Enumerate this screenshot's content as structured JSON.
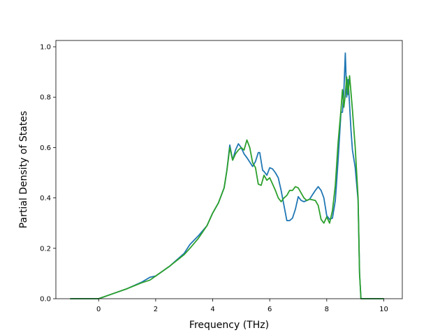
{
  "chart_data": {
    "type": "line",
    "title": "",
    "xlabel": "Frequency (THz)",
    "ylabel": "Partial Density of States",
    "xlim": [
      -1.5,
      10.65
    ],
    "ylim": [
      0.0,
      1.025
    ],
    "xticks": [
      0,
      2,
      4,
      6,
      8,
      10
    ],
    "xtick_labels": [
      "0",
      "2",
      "4",
      "6",
      "8",
      "10"
    ],
    "yticks": [
      0.0,
      0.2,
      0.4,
      0.6,
      0.8,
      1.0
    ],
    "ytick_labels": [
      "0.0",
      "0.2",
      "0.4",
      "0.6",
      "0.8",
      "1.0"
    ],
    "grid": false,
    "legend": "none",
    "series": [
      {
        "color": "#1f77b4",
        "x": [
          -1.0,
          0.0,
          0.5,
          1.0,
          1.5,
          1.8,
          2.0,
          2.5,
          3.0,
          3.2,
          3.5,
          3.8,
          4.0,
          4.2,
          4.4,
          4.5,
          4.6,
          4.7,
          4.8,
          4.9,
          5.0,
          5.1,
          5.2,
          5.4,
          5.5,
          5.6,
          5.65,
          5.75,
          5.8,
          5.9,
          6.0,
          6.1,
          6.2,
          6.3,
          6.4,
          6.5,
          6.6,
          6.7,
          6.8,
          6.9,
          7.0,
          7.1,
          7.2,
          7.4,
          7.6,
          7.7,
          7.8,
          7.9,
          8.0,
          8.1,
          8.2,
          8.3,
          8.4,
          8.5,
          8.55,
          8.6,
          8.65,
          8.7,
          8.75,
          8.8,
          8.85,
          8.9,
          9.0,
          9.1,
          9.15,
          9.2,
          9.3,
          10.0
        ],
        "y": [
          0.0,
          0.0,
          0.02,
          0.04,
          0.065,
          0.085,
          0.09,
          0.13,
          0.18,
          0.215,
          0.25,
          0.29,
          0.34,
          0.38,
          0.44,
          0.51,
          0.61,
          0.55,
          0.59,
          0.615,
          0.6,
          0.575,
          0.56,
          0.525,
          0.545,
          0.58,
          0.58,
          0.51,
          0.505,
          0.49,
          0.52,
          0.515,
          0.5,
          0.48,
          0.43,
          0.37,
          0.31,
          0.31,
          0.32,
          0.355,
          0.405,
          0.39,
          0.385,
          0.395,
          0.43,
          0.445,
          0.43,
          0.4,
          0.33,
          0.315,
          0.32,
          0.39,
          0.55,
          0.74,
          0.74,
          0.82,
          0.975,
          0.8,
          0.87,
          0.77,
          0.67,
          0.59,
          0.52,
          0.39,
          0.1,
          0.0,
          0.0,
          0.0
        ]
      },
      {
        "color": "#2ca02c",
        "x": [
          -1.0,
          0.0,
          0.5,
          1.0,
          1.5,
          1.8,
          2.0,
          2.5,
          3.0,
          3.2,
          3.5,
          3.8,
          4.0,
          4.2,
          4.4,
          4.5,
          4.6,
          4.7,
          4.8,
          4.9,
          5.0,
          5.1,
          5.2,
          5.3,
          5.4,
          5.5,
          5.6,
          5.7,
          5.8,
          5.9,
          6.0,
          6.1,
          6.2,
          6.3,
          6.4,
          6.5,
          6.6,
          6.7,
          6.8,
          6.9,
          7.0,
          7.1,
          7.2,
          7.3,
          7.4,
          7.6,
          7.7,
          7.8,
          7.9,
          8.0,
          8.1,
          8.2,
          8.3,
          8.4,
          8.5,
          8.55,
          8.6,
          8.65,
          8.7,
          8.75,
          8.8,
          8.85,
          8.9,
          9.0,
          9.1,
          9.15,
          9.2,
          9.3,
          10.0
        ],
        "y": [
          0.0,
          0.0,
          0.02,
          0.04,
          0.063,
          0.074,
          0.09,
          0.13,
          0.175,
          0.2,
          0.24,
          0.29,
          0.34,
          0.38,
          0.44,
          0.51,
          0.6,
          0.55,
          0.575,
          0.59,
          0.6,
          0.59,
          0.63,
          0.6,
          0.54,
          0.52,
          0.455,
          0.45,
          0.49,
          0.47,
          0.48,
          0.455,
          0.43,
          0.4,
          0.385,
          0.4,
          0.41,
          0.43,
          0.43,
          0.445,
          0.44,
          0.42,
          0.4,
          0.39,
          0.395,
          0.39,
          0.37,
          0.315,
          0.3,
          0.325,
          0.3,
          0.35,
          0.45,
          0.62,
          0.75,
          0.83,
          0.76,
          0.81,
          0.88,
          0.81,
          0.885,
          0.82,
          0.75,
          0.6,
          0.4,
          0.1,
          0.0,
          0.0,
          0.0
        ]
      }
    ]
  }
}
